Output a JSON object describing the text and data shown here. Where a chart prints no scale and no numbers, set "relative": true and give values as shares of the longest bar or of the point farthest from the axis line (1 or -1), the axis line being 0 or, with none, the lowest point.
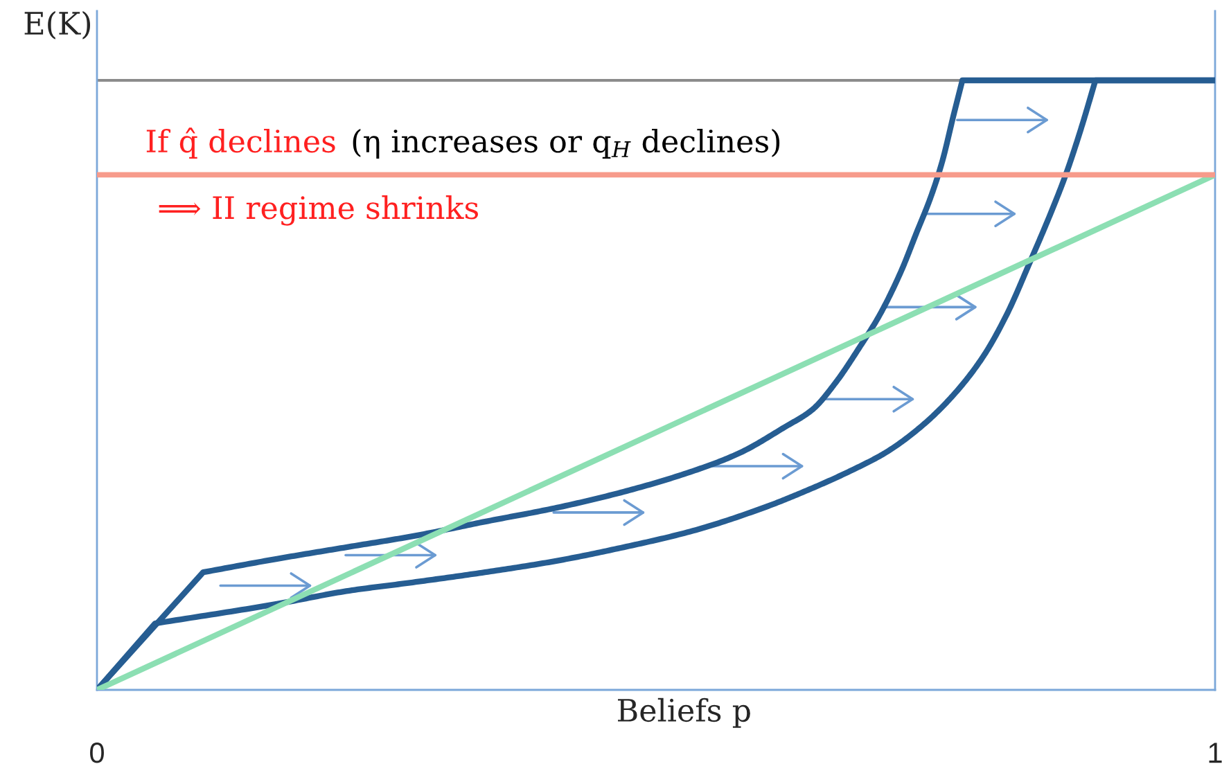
{
  "chart_data": {
    "type": "line",
    "relative": true,
    "xlabel": "Beliefs p",
    "ylabel": "E(K)",
    "xlim": [
      0,
      1
    ],
    "xticks": [
      0,
      1
    ],
    "annotations": [
      "If q̂ declines",
      "(η increases or q$_{H}$ declines)",
      "⟹ II regime shrinks"
    ],
    "series": [
      {
        "color": "#8c8c8c",
        "x": [
          0,
          1
        ],
        "values": [
          1,
          1
        ]
      },
      {
        "color": "#265d92",
        "x": [
          0,
          0.095,
          0.161,
          0.223,
          0.285,
          0.347,
          0.409,
          0.471,
          0.533,
          0.574,
          0.615,
          0.64,
          0.661,
          0.682,
          0.7,
          0.719,
          0.733,
          0.746,
          0.756,
          0.766,
          0.774,
          1
        ],
        "values": [
          0,
          0.193,
          0.215,
          0.234,
          0.253,
          0.276,
          0.298,
          0.325,
          0.359,
          0.388,
          0.431,
          0.46,
          0.505,
          0.562,
          0.615,
          0.686,
          0.75,
          0.81,
          0.867,
          0.942,
          1,
          1
        ]
      },
      {
        "color": "#265d92",
        "x": [
          0,
          0.052,
          0.161,
          0.223,
          0.285,
          0.347,
          0.409,
          0.471,
          0.533,
          0.595,
          0.636,
          0.677,
          0.706,
          0.739,
          0.768,
          0.793,
          0.814,
          0.834,
          0.855,
          0.867,
          0.88,
          0.893,
          1
        ],
        "values": [
          0,
          0.109,
          0.141,
          0.162,
          0.177,
          0.193,
          0.211,
          0.234,
          0.261,
          0.298,
          0.328,
          0.362,
          0.39,
          0.435,
          0.488,
          0.548,
          0.617,
          0.7,
          0.791,
          0.848,
          0.92,
          1,
          1
        ]
      },
      {
        "color": "#8cdfb3",
        "x": [
          0,
          1
        ],
        "values": [
          0,
          0.845
        ]
      },
      {
        "color": "#f79b8b",
        "x": [
          0,
          1
        ],
        "values": [
          0.845,
          0.845
        ]
      }
    ]
  }
}
